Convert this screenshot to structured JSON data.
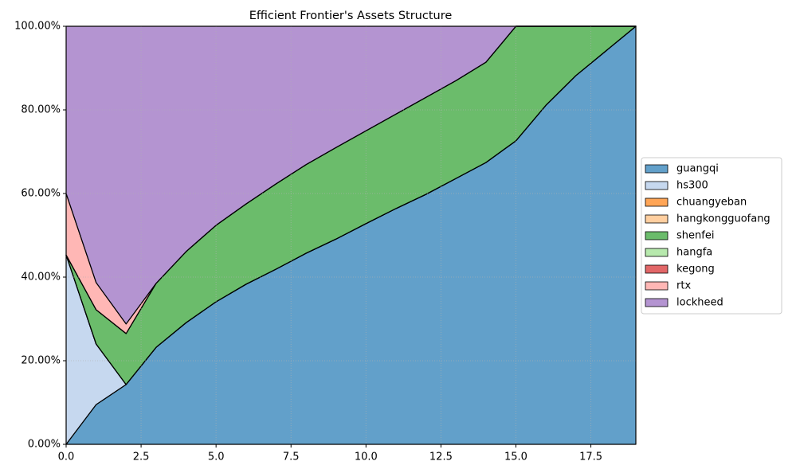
{
  "chart_data": {
    "type": "stacked_area",
    "title": "Efficient Frontier's Assets Structure",
    "x": [
      0,
      1,
      2,
      3,
      4,
      5,
      6,
      7,
      8,
      9,
      10,
      11,
      12,
      13,
      14,
      15,
      16,
      17,
      18,
      19
    ],
    "xlim": [
      0,
      19
    ],
    "xticks": [
      0.0,
      2.5,
      5.0,
      7.5,
      10.0,
      12.5,
      15.0,
      17.5
    ],
    "ylim": [
      0,
      100
    ],
    "yticks": [
      {
        "value": 0,
        "label": "0.00%"
      },
      {
        "value": 20,
        "label": "20.00%"
      },
      {
        "value": 40,
        "label": "40.00%"
      },
      {
        "value": 60,
        "label": "60.00%"
      },
      {
        "value": 80,
        "label": "80.00%"
      },
      {
        "value": 100,
        "label": "100.00%"
      }
    ],
    "grid": true,
    "legend": "outside right",
    "series": [
      {
        "name": "guangqi",
        "color": "#1f77b4",
        "values": [
          0,
          9.5,
          14.3,
          23.2,
          29.1,
          34.1,
          38.3,
          41.9,
          45.7,
          49.1,
          52.8,
          56.4,
          59.8,
          63.6,
          67.4,
          72.6,
          81.1,
          88.2,
          94.1,
          100
        ]
      },
      {
        "name": "hs300",
        "color": "#aec7e8",
        "values": [
          45.3,
          14.5,
          0,
          0,
          0,
          0,
          0,
          0,
          0,
          0,
          0,
          0,
          0,
          0,
          0,
          0,
          0,
          0,
          0,
          0
        ]
      },
      {
        "name": "chuangyeban",
        "color": "#ff7f0e",
        "values": [
          0,
          0,
          0,
          0,
          0,
          0,
          0,
          0,
          0,
          0,
          0,
          0,
          0,
          0,
          0,
          0,
          0,
          0,
          0,
          0
        ]
      },
      {
        "name": "hangkongguofang",
        "color": "#ffbb78",
        "values": [
          0,
          0,
          0,
          0,
          0,
          0,
          0,
          0,
          0,
          0,
          0,
          0,
          0,
          0,
          0,
          0,
          0,
          0,
          0,
          0
        ]
      },
      {
        "name": "shenfei",
        "color": "#2ca02c",
        "values": [
          0,
          8.2,
          12.2,
          15.3,
          17.0,
          18.3,
          19.2,
          20.4,
          21.2,
          21.9,
          22.2,
          22.6,
          23.2,
          23.4,
          24.0,
          27.4,
          18.9,
          11.8,
          5.9,
          0
        ]
      },
      {
        "name": "hangfa",
        "color": "#98df8a",
        "values": [
          0,
          0,
          0,
          0,
          0,
          0,
          0,
          0,
          0,
          0,
          0,
          0,
          0,
          0,
          0,
          0,
          0,
          0,
          0,
          0
        ]
      },
      {
        "name": "kegong",
        "color": "#d62728",
        "values": [
          0,
          0,
          0,
          0,
          0,
          0,
          0,
          0,
          0,
          0,
          0,
          0,
          0,
          0,
          0,
          0,
          0,
          0,
          0,
          0
        ]
      },
      {
        "name": "rtx",
        "color": "#ff9896",
        "values": [
          14.7,
          6.5,
          2.3,
          0,
          0,
          0,
          0,
          0,
          0,
          0,
          0,
          0,
          0,
          0,
          0,
          0,
          0,
          0,
          0,
          0
        ]
      },
      {
        "name": "lockheed",
        "color": "#9467bd",
        "values": [
          40,
          61.3,
          71.2,
          61.5,
          53.9,
          47.6,
          42.5,
          37.7,
          33.1,
          29.0,
          25.0,
          21.0,
          17.0,
          13.0,
          8.6,
          0,
          0,
          0,
          0,
          0
        ]
      }
    ]
  }
}
